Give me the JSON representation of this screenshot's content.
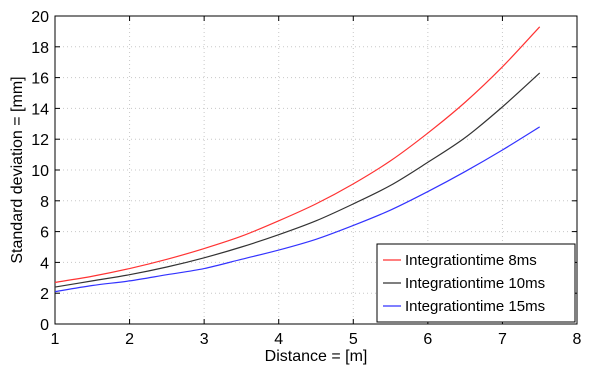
{
  "chart_data": {
    "type": "line",
    "title": "",
    "xlabel": "Distance = [m]",
    "ylabel": "Standard deviation = [mm]",
    "xlim": [
      1,
      8
    ],
    "ylim": [
      0,
      20
    ],
    "xticks": [
      1,
      2,
      3,
      4,
      5,
      6,
      7,
      8
    ],
    "yticks": [
      0,
      2,
      4,
      6,
      8,
      10,
      12,
      14,
      16,
      18,
      20
    ],
    "grid": true,
    "legend_position": "bottom-right",
    "x": [
      1.0,
      1.5,
      2.0,
      2.5,
      3.0,
      3.5,
      4.0,
      4.5,
      5.0,
      5.5,
      6.0,
      6.5,
      7.0,
      7.5
    ],
    "series": [
      {
        "name": "Integrationtime 8ms",
        "color": "#ff3333",
        "values": [
          2.7,
          3.1,
          3.6,
          4.2,
          4.9,
          5.7,
          6.7,
          7.8,
          9.1,
          10.6,
          12.4,
          14.4,
          16.7,
          19.3
        ]
      },
      {
        "name": "Integrationtime 10ms",
        "color": "#333333",
        "values": [
          2.4,
          2.8,
          3.2,
          3.7,
          4.3,
          5.0,
          5.8,
          6.7,
          7.8,
          9.0,
          10.5,
          12.1,
          14.1,
          16.3
        ]
      },
      {
        "name": "Integrationtime 15ms",
        "color": "#3333ff",
        "values": [
          2.1,
          2.5,
          2.8,
          3.2,
          3.6,
          4.2,
          4.8,
          5.5,
          6.4,
          7.4,
          8.6,
          9.9,
          11.3,
          12.8
        ]
      }
    ]
  }
}
